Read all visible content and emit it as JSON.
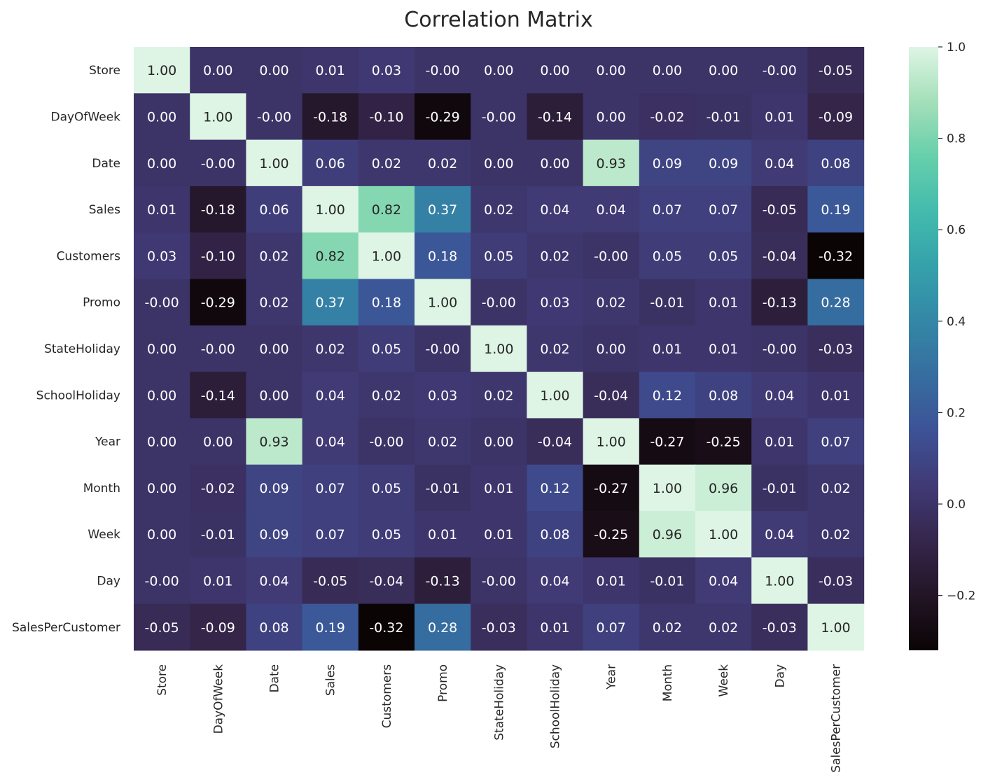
{
  "chart_data": {
    "type": "heatmap",
    "title": "Correlation Matrix",
    "xlabel": "",
    "ylabel": "",
    "categories": [
      "Store",
      "DayOfWeek",
      "Date",
      "Sales",
      "Customers",
      "Promo",
      "StateHoliday",
      "SchoolHoliday",
      "Year",
      "Month",
      "Week",
      "Day",
      "SalesPerCustomer"
    ],
    "value_labels": [
      [
        "1.00",
        "0.00",
        "0.00",
        "0.01",
        "0.03",
        "-0.00",
        "0.00",
        "0.00",
        "0.00",
        "0.00",
        "0.00",
        "-0.00",
        "-0.05"
      ],
      [
        "0.00",
        "1.00",
        "-0.00",
        "-0.18",
        "-0.10",
        "-0.29",
        "-0.00",
        "-0.14",
        "0.00",
        "-0.02",
        "-0.01",
        "0.01",
        "-0.09"
      ],
      [
        "0.00",
        "-0.00",
        "1.00",
        "0.06",
        "0.02",
        "0.02",
        "0.00",
        "0.00",
        "0.93",
        "0.09",
        "0.09",
        "0.04",
        "0.08"
      ],
      [
        "0.01",
        "-0.18",
        "0.06",
        "1.00",
        "0.82",
        "0.37",
        "0.02",
        "0.04",
        "0.04",
        "0.07",
        "0.07",
        "-0.05",
        "0.19"
      ],
      [
        "0.03",
        "-0.10",
        "0.02",
        "0.82",
        "1.00",
        "0.18",
        "0.05",
        "0.02",
        "-0.00",
        "0.05",
        "0.05",
        "-0.04",
        "-0.32"
      ],
      [
        "-0.00",
        "-0.29",
        "0.02",
        "0.37",
        "0.18",
        "1.00",
        "-0.00",
        "0.03",
        "0.02",
        "-0.01",
        "0.01",
        "-0.13",
        "0.28"
      ],
      [
        "0.00",
        "-0.00",
        "0.00",
        "0.02",
        "0.05",
        "-0.00",
        "1.00",
        "0.02",
        "0.00",
        "0.01",
        "0.01",
        "-0.00",
        "-0.03"
      ],
      [
        "0.00",
        "-0.14",
        "0.00",
        "0.04",
        "0.02",
        "0.03",
        "0.02",
        "1.00",
        "-0.04",
        "0.12",
        "0.08",
        "0.04",
        "0.01"
      ],
      [
        "0.00",
        "0.00",
        "0.93",
        "0.04",
        "-0.00",
        "0.02",
        "0.00",
        "-0.04",
        "1.00",
        "-0.27",
        "-0.25",
        "0.01",
        "0.07"
      ],
      [
        "0.00",
        "-0.02",
        "0.09",
        "0.07",
        "0.05",
        "-0.01",
        "0.01",
        "0.12",
        "-0.27",
        "1.00",
        "0.96",
        "-0.01",
        "0.02"
      ],
      [
        "0.00",
        "-0.01",
        "0.09",
        "0.07",
        "0.05",
        "0.01",
        "0.01",
        "0.08",
        "-0.25",
        "0.96",
        "1.00",
        "0.04",
        "0.02"
      ],
      [
        "-0.00",
        "0.01",
        "0.04",
        "-0.05",
        "-0.04",
        "-0.13",
        "-0.00",
        "0.04",
        "0.01",
        "-0.01",
        "0.04",
        "1.00",
        "-0.03"
      ],
      [
        "-0.05",
        "-0.09",
        "0.08",
        "0.19",
        "-0.32",
        "0.28",
        "-0.03",
        "0.01",
        "0.07",
        "0.02",
        "0.02",
        "-0.03",
        "1.00"
      ]
    ],
    "colorbar": {
      "range": [
        -0.32,
        1.0
      ],
      "ticks": [
        1.0,
        0.8,
        0.6,
        0.4,
        0.2,
        0.0,
        -0.2
      ],
      "tick_labels": [
        "1.0",
        "0.8",
        "0.6",
        "0.4",
        "0.2",
        "0.0",
        "−0.2"
      ],
      "colormap": "mako",
      "color_stops": [
        "#0b0405",
        "#231526",
        "#35264c",
        "#403a75",
        "#3d5296",
        "#366da0",
        "#3487a6",
        "#35a1ab",
        "#43bbad",
        "#66cfab",
        "#a4dfb9",
        "#def5e5"
      ]
    },
    "grid": false
  }
}
